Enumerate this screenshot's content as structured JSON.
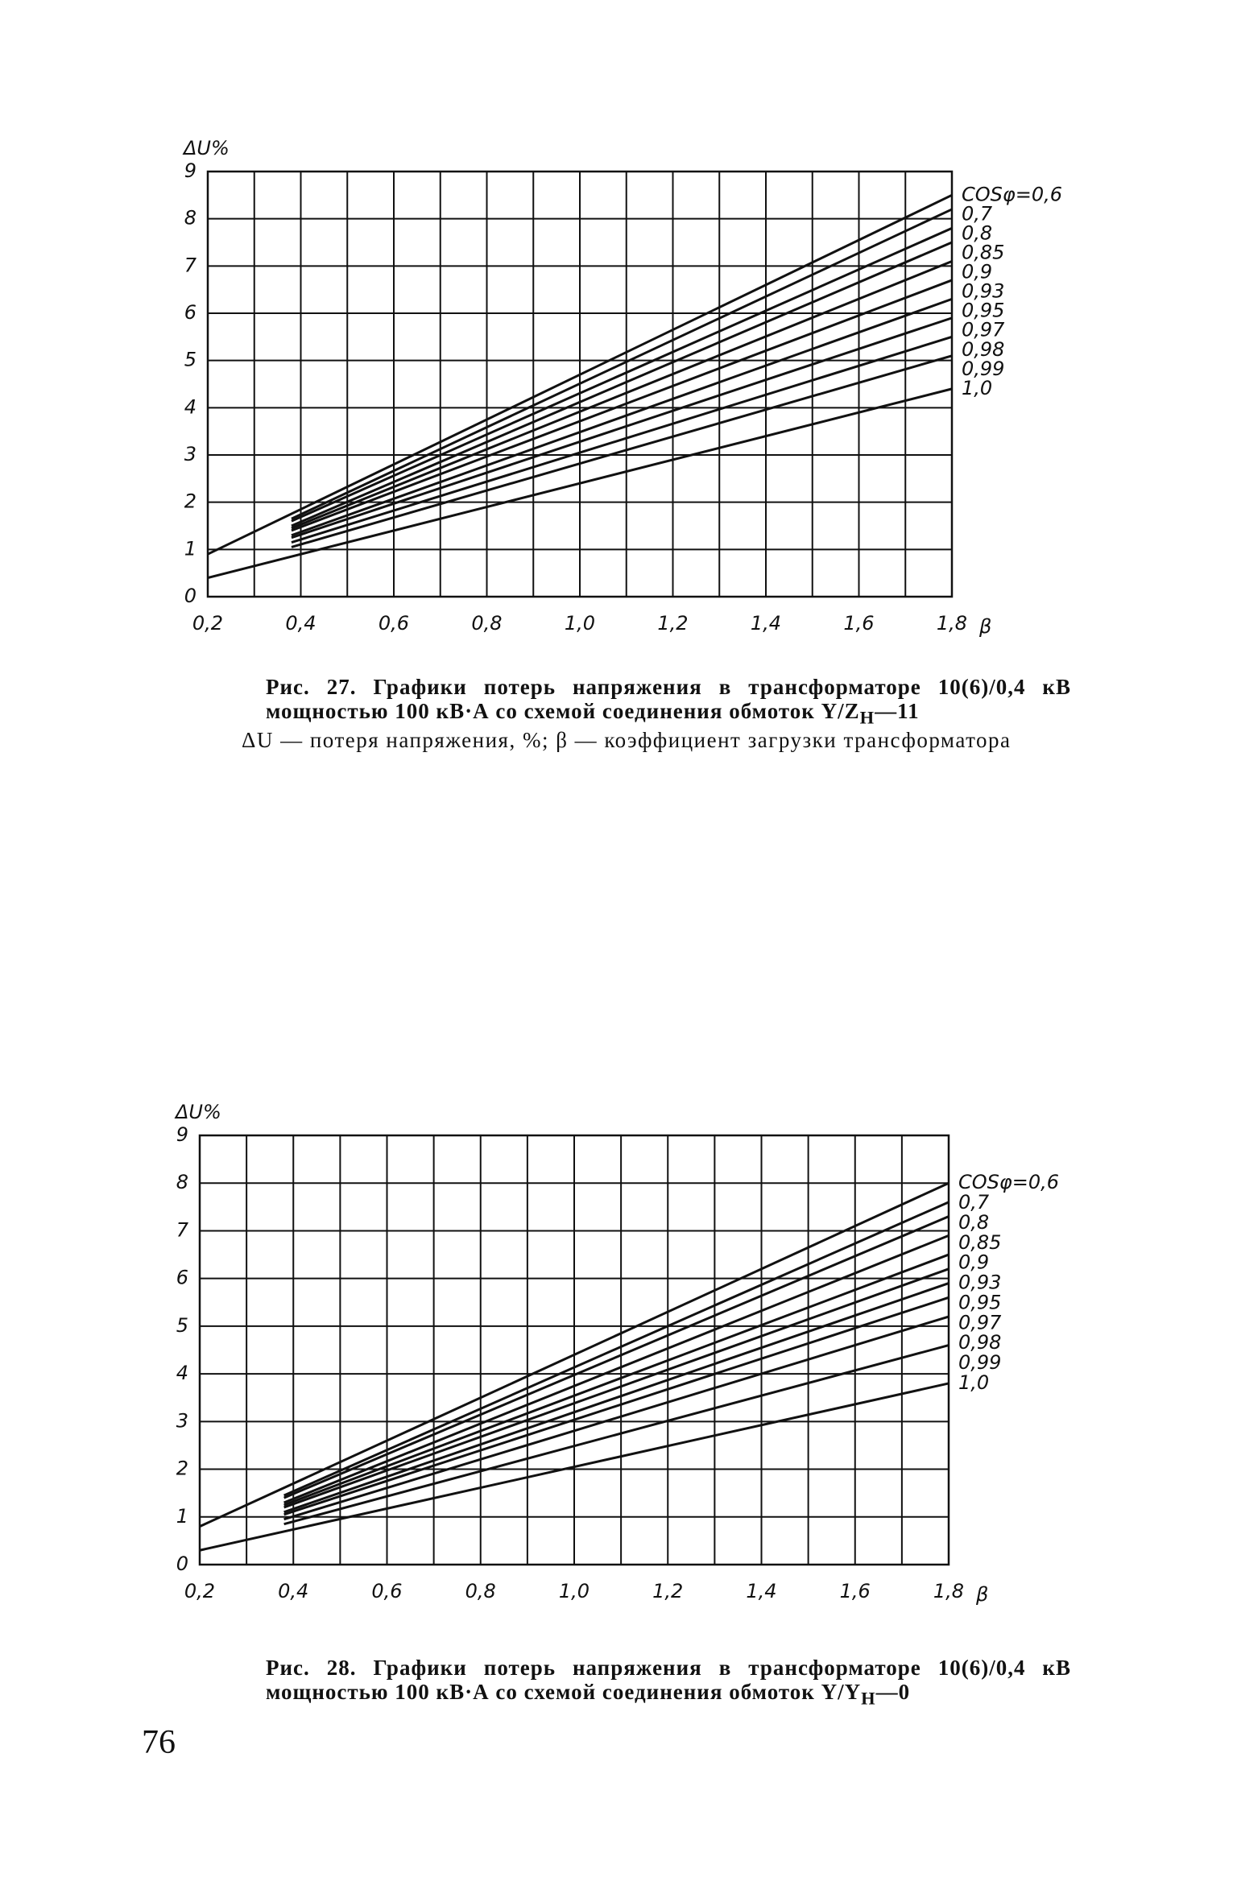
{
  "chart_data": [
    {
      "type": "line",
      "y_label": "ΔU%",
      "x_label": "β",
      "xlim": [
        0.2,
        1.8
      ],
      "ylim": [
        0,
        9
      ],
      "xticks": [
        {
          "value": 0.2,
          "label": "0,2"
        },
        {
          "value": 0.4,
          "label": "0,4"
        },
        {
          "value": 0.6,
          "label": "0,6"
        },
        {
          "value": 0.8,
          "label": "0,8"
        },
        {
          "value": 1.0,
          "label": "1,0"
        },
        {
          "value": 1.2,
          "label": "1,2"
        },
        {
          "value": 1.4,
          "label": "1,4"
        },
        {
          "value": 1.6,
          "label": "1,6"
        },
        {
          "value": 1.8,
          "label": "1,8"
        }
      ],
      "yticks": [
        0,
        1,
        2,
        3,
        4,
        5,
        6,
        7,
        8,
        9
      ],
      "grid": true,
      "series": [
        {
          "name": "COSφ=0,6",
          "color": "#111111",
          "x": [
            0.2,
            1.8
          ],
          "values": [
            0.9,
            8.5
          ]
        },
        {
          "name": "0,7",
          "color": "#111111",
          "x": [
            0.38,
            1.8
          ],
          "values": [
            1.65,
            8.2
          ]
        },
        {
          "name": "0,8",
          "color": "#111111",
          "x": [
            0.38,
            1.8
          ],
          "values": [
            1.6,
            7.8
          ]
        },
        {
          "name": "0,85",
          "color": "#111111",
          "x": [
            0.38,
            1.8
          ],
          "values": [
            1.5,
            7.5
          ]
        },
        {
          "name": "0,9",
          "color": "#111111",
          "x": [
            0.38,
            1.8
          ],
          "values": [
            1.45,
            7.1
          ]
        },
        {
          "name": "0,93",
          "color": "#111111",
          "x": [
            0.38,
            1.8
          ],
          "values": [
            1.4,
            6.7
          ]
        },
        {
          "name": "0,95",
          "color": "#111111",
          "x": [
            0.38,
            1.8
          ],
          "values": [
            1.3,
            6.3
          ]
        },
        {
          "name": "0,97",
          "color": "#111111",
          "x": [
            0.38,
            1.8
          ],
          "values": [
            1.25,
            5.9
          ]
        },
        {
          "name": "0,98",
          "color": "#111111",
          "x": [
            0.38,
            1.8
          ],
          "values": [
            1.15,
            5.5
          ]
        },
        {
          "name": "0,99",
          "color": "#111111",
          "x": [
            0.38,
            1.8
          ],
          "values": [
            1.05,
            5.1
          ]
        },
        {
          "name": "1,0",
          "color": "#111111",
          "x": [
            0.2,
            1.8
          ],
          "values": [
            0.4,
            4.4
          ]
        }
      ]
    },
    {
      "type": "line",
      "y_label": "ΔU%",
      "x_label": "β",
      "xlim": [
        0.2,
        1.8
      ],
      "ylim": [
        0,
        9
      ],
      "xticks": [
        {
          "value": 0.2,
          "label": "0,2"
        },
        {
          "value": 0.4,
          "label": "0,4"
        },
        {
          "value": 0.6,
          "label": "0,6"
        },
        {
          "value": 0.8,
          "label": "0,8"
        },
        {
          "value": 1.0,
          "label": "1,0"
        },
        {
          "value": 1.2,
          "label": "1,2"
        },
        {
          "value": 1.4,
          "label": "1,4"
        },
        {
          "value": 1.6,
          "label": "1,6"
        },
        {
          "value": 1.8,
          "label": "1,8"
        }
      ],
      "yticks": [
        0,
        1,
        2,
        3,
        4,
        5,
        6,
        7,
        8,
        9
      ],
      "grid": true,
      "series": [
        {
          "name": "COSφ=0,6",
          "color": "#111111",
          "x": [
            0.2,
            1.8
          ],
          "values": [
            0.8,
            8.0
          ]
        },
        {
          "name": "0,7",
          "color": "#111111",
          "x": [
            0.38,
            1.8
          ],
          "values": [
            1.45,
            7.6
          ]
        },
        {
          "name": "0,8",
          "color": "#111111",
          "x": [
            0.38,
            1.8
          ],
          "values": [
            1.4,
            7.3
          ]
        },
        {
          "name": "0,85",
          "color": "#111111",
          "x": [
            0.38,
            1.8
          ],
          "values": [
            1.3,
            6.9
          ]
        },
        {
          "name": "0,9",
          "color": "#111111",
          "x": [
            0.38,
            1.8
          ],
          "values": [
            1.25,
            6.5
          ]
        },
        {
          "name": "0,93",
          "color": "#111111",
          "x": [
            0.38,
            1.8
          ],
          "values": [
            1.2,
            6.2
          ]
        },
        {
          "name": "0,95",
          "color": "#111111",
          "x": [
            0.38,
            1.8
          ],
          "values": [
            1.1,
            5.9
          ]
        },
        {
          "name": "0,97",
          "color": "#111111",
          "x": [
            0.38,
            1.8
          ],
          "values": [
            1.05,
            5.6
          ]
        },
        {
          "name": "0,98",
          "color": "#111111",
          "x": [
            0.38,
            1.8
          ],
          "values": [
            0.95,
            5.2
          ]
        },
        {
          "name": "0,99",
          "color": "#111111",
          "x": [
            0.38,
            1.8
          ],
          "values": [
            0.85,
            4.6
          ]
        },
        {
          "name": "1,0",
          "color": "#111111",
          "x": [
            0.2,
            1.8
          ],
          "values": [
            0.3,
            3.8
          ]
        }
      ]
    }
  ],
  "captions": [
    {
      "text": "Рис. 27. Графики потерь напряжения в трансформаторе 10(6)/0,4 кВ мощностью 100 кВ·А со схемой соединения обмоток Y/Z",
      "subscript": "Н",
      "suffix": "—11",
      "note": "ΔU — потеря напряжения, %; β — коэффициент загрузки трансформатора"
    },
    {
      "text": "Рис. 28. Графики потерь напряжения в трансформаторе 10(6)/0,4 кВ мощностью 100 кВ·А со схемой соединения обмоток Y/Y",
      "subscript": "Н",
      "suffix": "—0"
    }
  ],
  "page_number": 76
}
